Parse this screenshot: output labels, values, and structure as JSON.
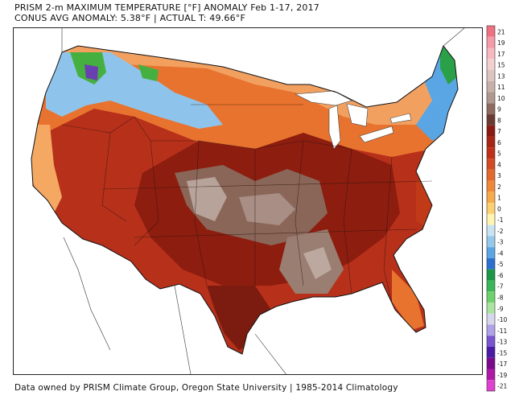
{
  "header": {
    "title": "PRISM 2-m MAXIMUM TEMPERATURE [°F] ANOMALY Feb 1-17, 2017",
    "subtitle": "CONUS AVG ANOMALY: 5.38°F | ACTUAL T: 49.66°F"
  },
  "footer": {
    "credit": "Data owned by PRISM Climate Group, Oregon State University | 1985-2014 Climatology"
  },
  "colorbar": {
    "labels": [
      "21",
      "19",
      "17",
      "15",
      "13",
      "11",
      "10",
      "9",
      "8",
      "7",
      "6",
      "5",
      "4",
      "3",
      "2",
      "1",
      "0",
      "-1",
      "-2",
      "-3",
      "-4",
      "-5",
      "-6",
      "-7",
      "-8",
      "-9",
      "-10",
      "-11",
      "-13",
      "-15",
      "-17",
      "-19",
      "-21"
    ],
    "colors": [
      "#f07082",
      "#f59aa8",
      "#f7b8c0",
      "#f3d0d0",
      "#dcc4c0",
      "#c8b0aa",
      "#b09890",
      "#8c6a60",
      "#6a3a32",
      "#8a1a12",
      "#a82414",
      "#c03018",
      "#d44a22",
      "#e4682c",
      "#f08838",
      "#f7aa4a",
      "#fcd070",
      "#fff4b0",
      "#c8e4f0",
      "#96c8ec",
      "#5aa6e4",
      "#2a70d2",
      "#1a9848",
      "#38b858",
      "#6ed26c",
      "#aae4a0",
      "#d6d6ec",
      "#b0a2e6",
      "#7856d2",
      "#4a1aa8",
      "#7a0a8a",
      "#b018a8",
      "#e040d0",
      "#f080e8"
    ]
  },
  "map": {
    "description_colors": {
      "deep_red": "#a0200f",
      "red": "#c23b1c",
      "orange": "#e8732e",
      "light_orange": "#f4a862",
      "brown": "#8a6658",
      "taupe": "#b8a39a",
      "blue": "#6aa8e0",
      "green": "#45b040",
      "purple": "#6a40b0"
    }
  }
}
